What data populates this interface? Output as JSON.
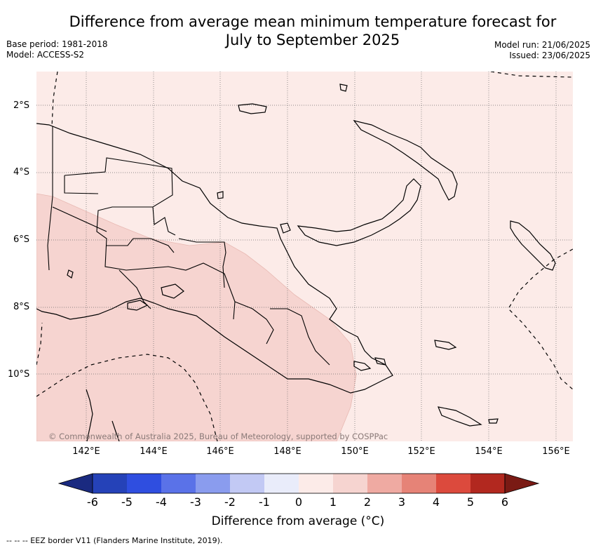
{
  "title_line1": "Difference from average mean minimum temperature forecast for",
  "title_line2": "July to September 2025",
  "base_period": "Base period: 1981-2018",
  "model": "Model: ACCESS-S2",
  "model_run": "Model run: 21/06/2025",
  "issued": "Issued: 23/06/2025",
  "lat_labels": [
    "2°S",
    "4°S",
    "6°S",
    "8°S",
    "10°S"
  ],
  "lon_labels": [
    "142°E",
    "144°E",
    "146°E",
    "148°E",
    "150°E",
    "152°E",
    "154°E",
    "156°E"
  ],
  "colorbar": {
    "ticks": [
      "-6",
      "-5",
      "-4",
      "-3",
      "-2",
      "-1",
      "0",
      "1",
      "2",
      "3",
      "4",
      "5",
      "6"
    ],
    "colors": [
      "#1a2a80",
      "#2542b8",
      "#2f4ee0",
      "#5a72e8",
      "#8a9cee",
      "#c2c9f4",
      "#e9ecfa",
      "#fcebe8",
      "#f6d4d0",
      "#efaaa2",
      "#e68377",
      "#dc4a3d",
      "#b2281f",
      "#7a1a14"
    ],
    "label": "Difference from average (°C)"
  },
  "map_colors": {
    "background": "#fcebe8",
    "warm_zone": "#f6d4d0"
  },
  "copyright": "© Commonwealth of Australia 2025, Bureau of Meteorology, supported by COSPPac",
  "footnote": "-- -- -- EEZ border V11 (Flanders Marine Institute, 2019)."
}
